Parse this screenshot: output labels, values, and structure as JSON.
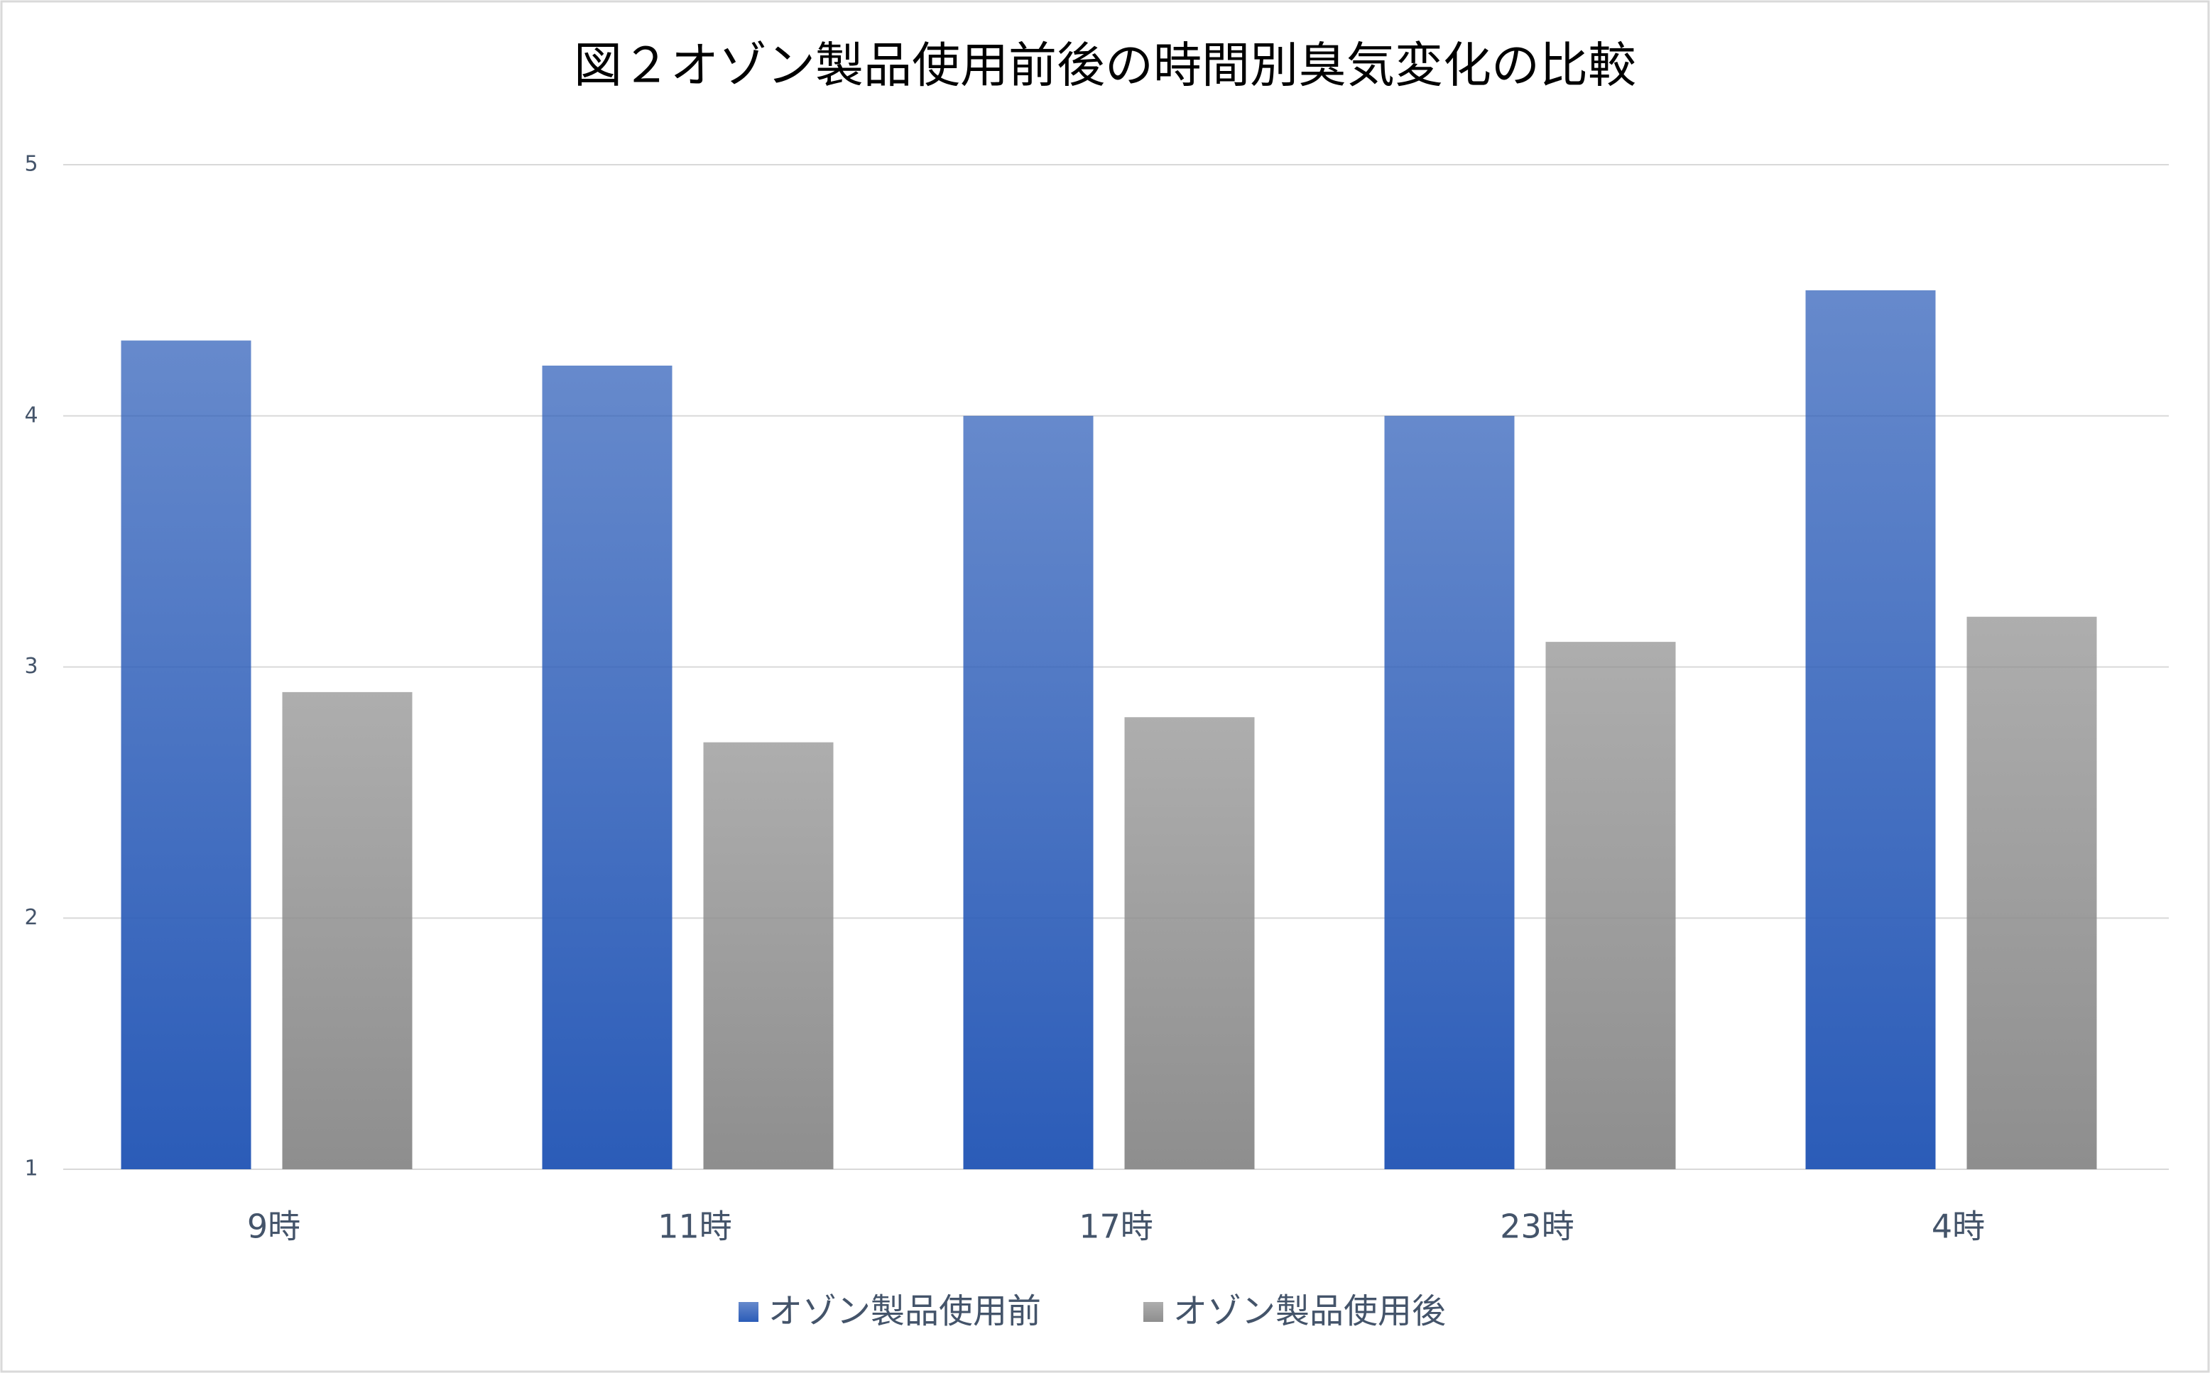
{
  "chart_data": {
    "type": "bar",
    "title": "図２オゾン製品使用前後の時間別臭気変化の比較",
    "categories": [
      "9時",
      "11時",
      "17時",
      "23時",
      "4時"
    ],
    "series": [
      {
        "name": "オゾン製品使用前",
        "color": "#2b5cb8",
        "values": [
          4.3,
          4.2,
          4.0,
          4.0,
          4.5
        ]
      },
      {
        "name": "オゾン製品使用後",
        "color": "#8e8e8e",
        "values": [
          2.9,
          2.7,
          2.8,
          3.1,
          3.2
        ]
      }
    ],
    "ylim": [
      1,
      5
    ],
    "yticks": [
      1,
      2,
      3,
      4,
      5
    ],
    "grid": true,
    "legend": "bottom"
  }
}
